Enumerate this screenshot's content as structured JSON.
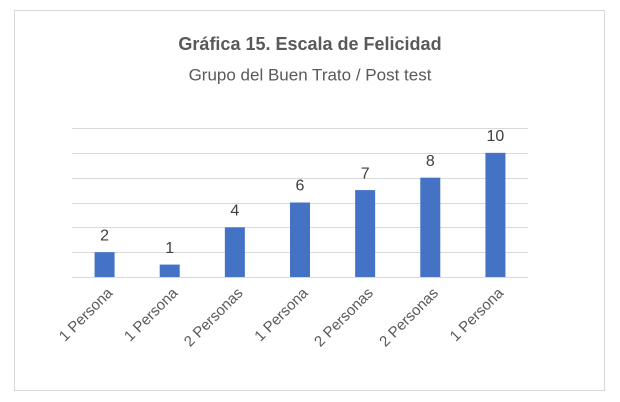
{
  "chart_data": {
    "type": "bar",
    "title": "Gráfica 15. Escala de Felicidad",
    "subtitle": "Grupo del  Buen Trato  / Post test",
    "categories": [
      "1 Persona",
      "1 Persona",
      "2 Personas",
      "1 Persona",
      "2 Personas",
      "2 Personas",
      "1 Persona"
    ],
    "values": [
      2,
      1,
      4,
      6,
      7,
      8,
      10
    ],
    "color": "#4472c4",
    "ylim": [
      0,
      12
    ],
    "yticks": [
      0,
      2,
      4,
      6,
      8,
      10,
      12
    ],
    "grid": true
  }
}
